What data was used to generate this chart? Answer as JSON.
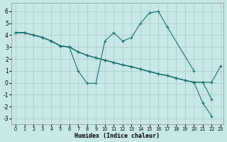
{
  "xlabel": "Humidex (Indice chaleur)",
  "bg_color": "#c8e8e8",
  "grid_color": "#b0cccc",
  "line_color": "#1a7070",
  "line1_x": [
    0,
    1,
    2,
    3,
    4,
    5,
    6,
    7,
    8,
    9,
    10,
    11,
    12,
    13,
    14,
    15,
    16,
    17,
    20
  ],
  "line1_y": [
    4.2,
    4.2,
    4.0,
    3.8,
    3.5,
    3.1,
    3.0,
    1.0,
    -0.05,
    -0.05,
    3.5,
    4.2,
    3.5,
    3.8,
    5.0,
    5.85,
    6.0,
    4.7,
    1.0
  ],
  "line2_x": [
    0,
    1,
    2,
    3,
    4,
    5,
    6,
    7,
    8,
    9,
    10,
    11,
    12,
    13,
    14,
    15,
    16,
    17,
    18,
    19,
    20,
    21,
    22
  ],
  "line2_y": [
    4.2,
    4.2,
    4.0,
    3.8,
    3.5,
    3.1,
    3.0,
    2.6,
    2.3,
    2.1,
    1.9,
    1.7,
    1.5,
    1.35,
    1.15,
    0.95,
    0.75,
    0.6,
    0.4,
    0.2,
    0.05,
    -1.7,
    -2.8
  ],
  "line3_x": [
    0,
    1,
    2,
    3,
    4,
    5,
    6,
    7,
    8,
    9,
    10,
    11,
    12,
    13,
    14,
    15,
    16,
    17,
    18,
    19,
    20,
    21,
    22
  ],
  "line3_y": [
    4.2,
    4.2,
    4.0,
    3.8,
    3.5,
    3.1,
    3.0,
    2.6,
    2.3,
    2.1,
    1.9,
    1.7,
    1.5,
    1.35,
    1.15,
    0.95,
    0.75,
    0.6,
    0.4,
    0.2,
    0.05,
    0.05,
    -1.4
  ],
  "line4_x": [
    0,
    1,
    2,
    3,
    4,
    5,
    6,
    7,
    8,
    9,
    10,
    11,
    12,
    13,
    14,
    15,
    16,
    17,
    18,
    19,
    20,
    21,
    22,
    23
  ],
  "line4_y": [
    4.2,
    4.2,
    4.0,
    3.8,
    3.5,
    3.1,
    3.0,
    2.6,
    2.3,
    2.1,
    1.9,
    1.7,
    1.5,
    1.35,
    1.15,
    0.95,
    0.75,
    0.6,
    0.4,
    0.2,
    0.05,
    0.05,
    0.05,
    1.4
  ],
  "xlim": [
    -0.5,
    23.3
  ],
  "ylim": [
    -3.5,
    6.7
  ],
  "xticks": [
    0,
    1,
    2,
    3,
    4,
    5,
    6,
    7,
    8,
    9,
    10,
    11,
    12,
    13,
    14,
    15,
    16,
    17,
    18,
    19,
    20,
    21,
    22,
    23
  ],
  "yticks": [
    -3,
    -2,
    -1,
    0,
    1,
    2,
    3,
    4,
    5,
    6
  ]
}
